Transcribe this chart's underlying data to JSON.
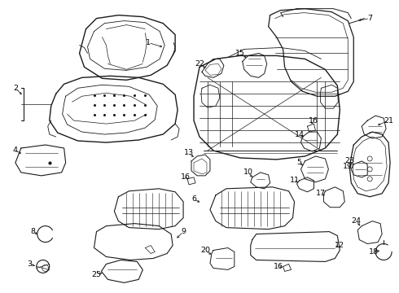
{
  "bg_color": "#ffffff",
  "line_color": "#1a1a1a",
  "text_color": "#000000",
  "fig_width": 4.9,
  "fig_height": 3.6,
  "dpi": 100
}
